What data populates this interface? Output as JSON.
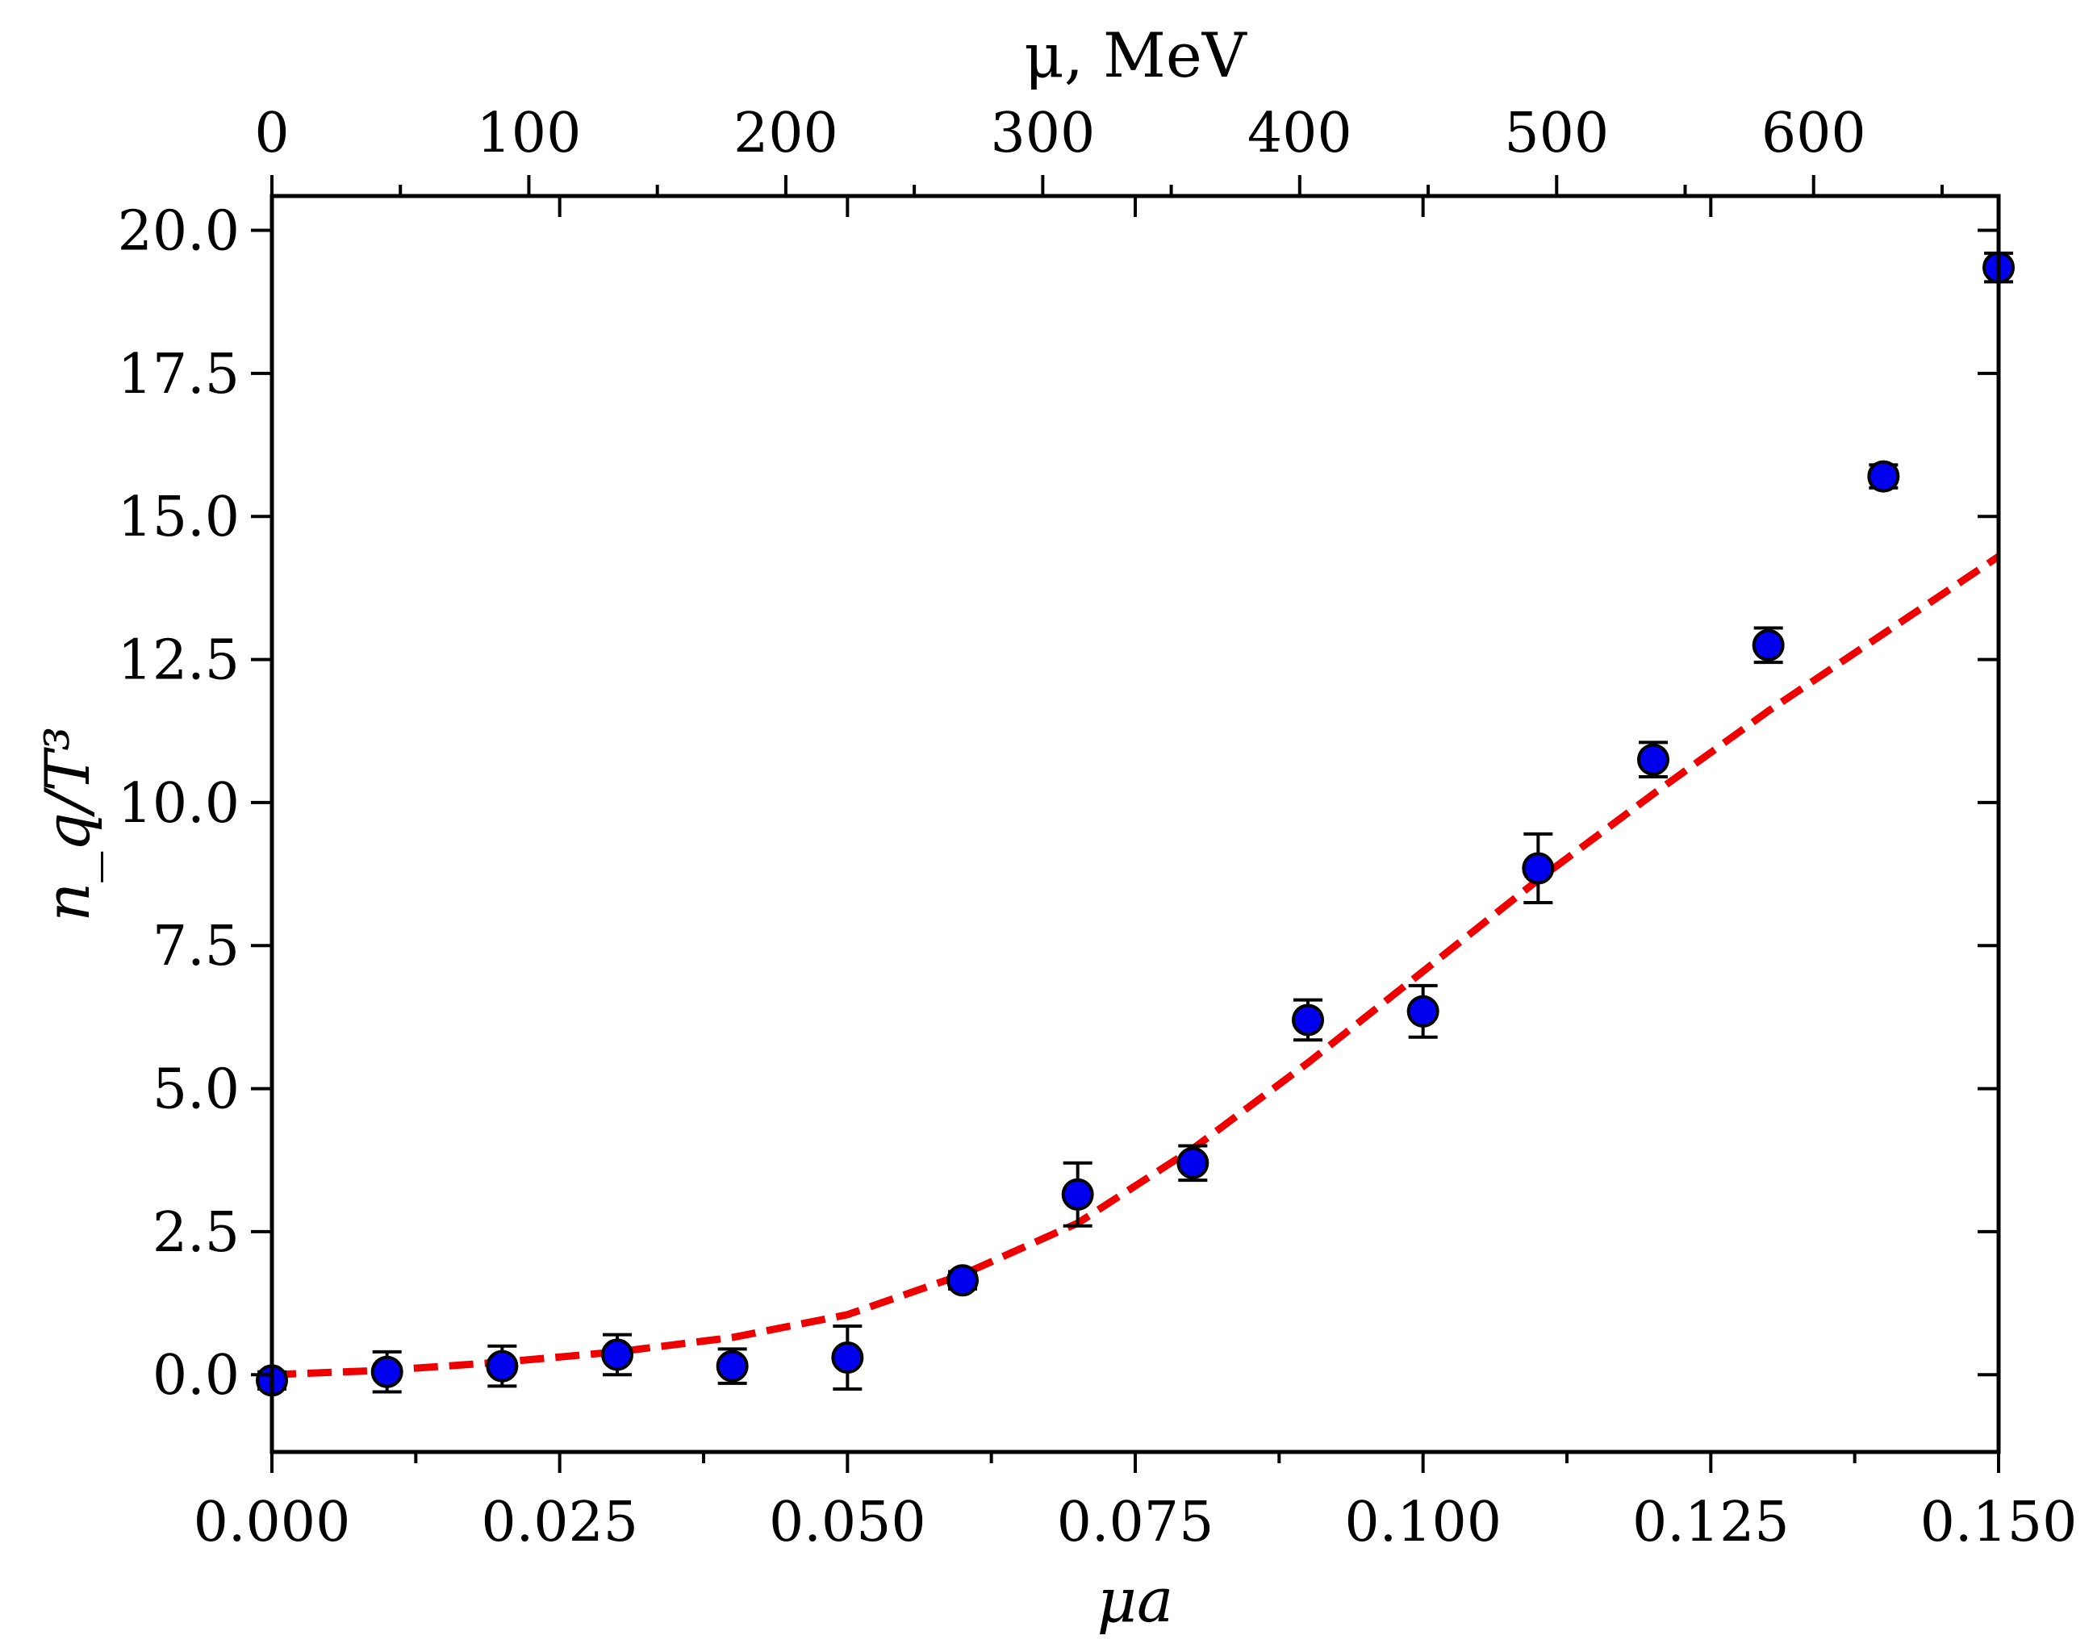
{
  "chart_data": {
    "type": "scatter",
    "xlabel": "μa",
    "ylabel": "n_q/T³",
    "top_xlabel": "μ, MeV",
    "xlim": [
      0.0,
      0.15
    ],
    "ylim": [
      -1.35,
      20.6
    ],
    "top_xlim": [
      0,
      672
    ],
    "x_ticks": [
      0.0,
      0.025,
      0.05,
      0.075,
      0.1,
      0.125,
      0.15
    ],
    "x_tick_labels": [
      "0.000",
      "0.025",
      "0.050",
      "0.075",
      "0.100",
      "0.125",
      "0.150"
    ],
    "y_ticks": [
      0.0,
      2.5,
      5.0,
      7.5,
      10.0,
      12.5,
      15.0,
      17.5,
      20.0
    ],
    "y_tick_labels": [
      "0.0",
      "2.5",
      "5.0",
      "7.5",
      "10.0",
      "12.5",
      "15.0",
      "17.5",
      "20.0"
    ],
    "top_ticks": [
      0,
      100,
      200,
      300,
      400,
      500,
      600
    ],
    "top_tick_labels": [
      "0",
      "100",
      "200",
      "300",
      "400",
      "500",
      "600"
    ],
    "grid": false,
    "series": [
      {
        "kind": "points_with_errorbars",
        "color": "#0000ee",
        "x": [
          0.0,
          0.01,
          0.02,
          0.03,
          0.04,
          0.05,
          0.06,
          0.07,
          0.08,
          0.09,
          0.1,
          0.11,
          0.12,
          0.13,
          0.14,
          0.15
        ],
        "y": [
          -0.1,
          0.05,
          0.15,
          0.35,
          0.15,
          0.3,
          1.65,
          3.15,
          3.7,
          6.2,
          6.35,
          8.85,
          10.75,
          12.75,
          15.7,
          19.35
        ],
        "yerr": [
          0.15,
          0.35,
          0.35,
          0.35,
          0.3,
          0.55,
          0.15,
          0.55,
          0.3,
          0.35,
          0.45,
          0.6,
          0.3,
          0.3,
          0.2,
          0.25
        ]
      },
      {
        "kind": "dashed_line",
        "color": "#ee0000",
        "x": [
          0.0,
          0.01,
          0.02,
          0.03,
          0.04,
          0.05,
          0.06,
          0.07,
          0.08,
          0.09,
          0.1,
          0.11,
          0.12,
          0.13,
          0.14,
          0.15
        ],
        "y": [
          0.0,
          0.08,
          0.22,
          0.4,
          0.65,
          1.05,
          1.75,
          2.65,
          3.95,
          5.45,
          7.05,
          8.65,
          10.15,
          11.6,
          12.95,
          14.3
        ]
      }
    ]
  }
}
